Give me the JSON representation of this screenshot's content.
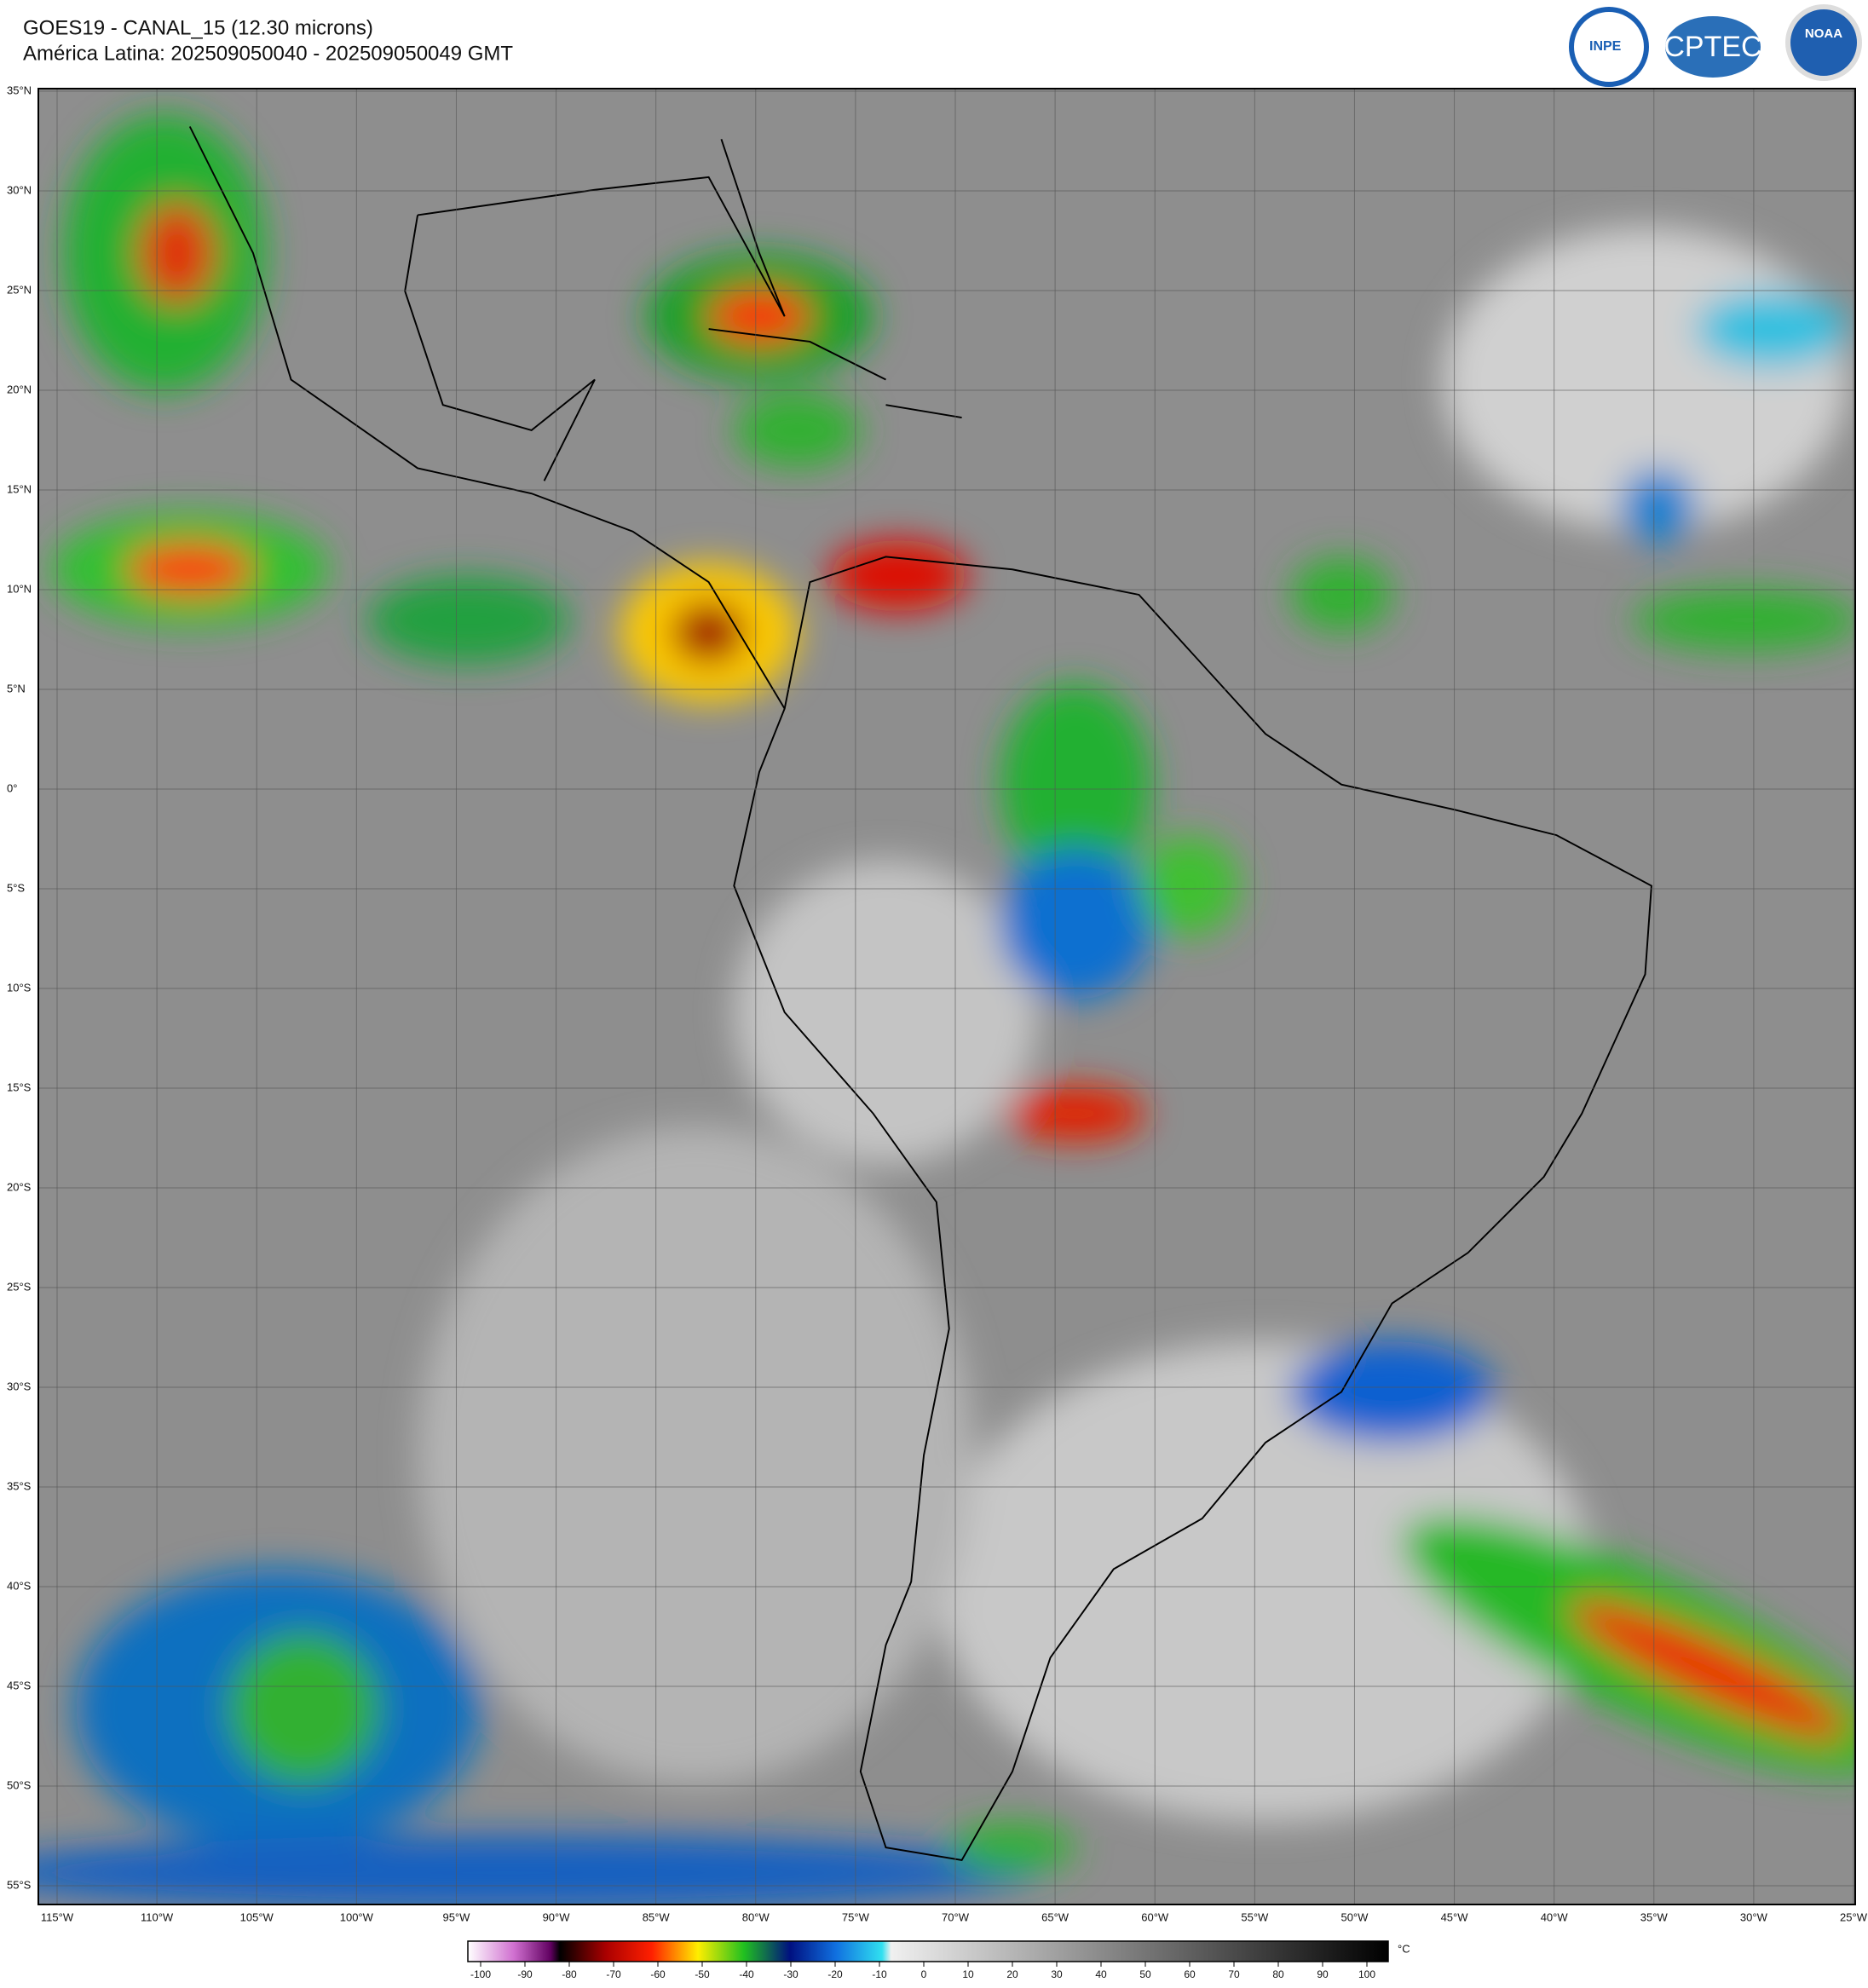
{
  "header": {
    "title": "GOES19 - CANAL_15 (12.30 microns)",
    "subtitle": "América Latina: 202509050040 - 202509050049 GMT"
  },
  "logos": [
    "INPE",
    "CPTEC",
    "NOAA"
  ],
  "map": {
    "lat_ticks": [
      {
        "value": 35,
        "label": "35°N"
      },
      {
        "value": 30,
        "label": "30°N"
      },
      {
        "value": 25,
        "label": "25°N"
      },
      {
        "value": 20,
        "label": "20°N"
      },
      {
        "value": 15,
        "label": "15°N"
      },
      {
        "value": 10,
        "label": "10°N"
      },
      {
        "value": 5,
        "label": "5°N"
      },
      {
        "value": 0,
        "label": "0°"
      },
      {
        "value": -5,
        "label": "5°S"
      },
      {
        "value": -10,
        "label": "10°S"
      },
      {
        "value": -15,
        "label": "15°S"
      },
      {
        "value": -20,
        "label": "20°S"
      },
      {
        "value": -25,
        "label": "25°S"
      },
      {
        "value": -30,
        "label": "30°S"
      },
      {
        "value": -35,
        "label": "35°S"
      },
      {
        "value": -40,
        "label": "40°S"
      },
      {
        "value": -45,
        "label": "45°S"
      },
      {
        "value": -50,
        "label": "50°S"
      },
      {
        "value": -55,
        "label": "55°S"
      }
    ],
    "lon_ticks": [
      {
        "value": -115,
        "label": "115°W"
      },
      {
        "value": -110,
        "label": "110°W"
      },
      {
        "value": -105,
        "label": "105°W"
      },
      {
        "value": -100,
        "label": "100°W"
      },
      {
        "value": -95,
        "label": "95°W"
      },
      {
        "value": -90,
        "label": "90°W"
      },
      {
        "value": -85,
        "label": "85°W"
      },
      {
        "value": -80,
        "label": "80°W"
      },
      {
        "value": -75,
        "label": "75°W"
      },
      {
        "value": -70,
        "label": "70°W"
      },
      {
        "value": -65,
        "label": "65°W"
      },
      {
        "value": -60,
        "label": "60°W"
      },
      {
        "value": -55,
        "label": "55°W"
      },
      {
        "value": -50,
        "label": "50°W"
      },
      {
        "value": -45,
        "label": "45°W"
      },
      {
        "value": -40,
        "label": "40°W"
      },
      {
        "value": -35,
        "label": "35°W"
      },
      {
        "value": -30,
        "label": "30°W"
      },
      {
        "value": -25,
        "label": "25°W"
      }
    ]
  },
  "colorbar": {
    "unit": "°C",
    "ticks": [
      -100,
      -90,
      -80,
      -70,
      -60,
      -50,
      -40,
      -30,
      -20,
      -10,
      0,
      10,
      20,
      30,
      40,
      50,
      60,
      70,
      80,
      90,
      100
    ]
  }
}
